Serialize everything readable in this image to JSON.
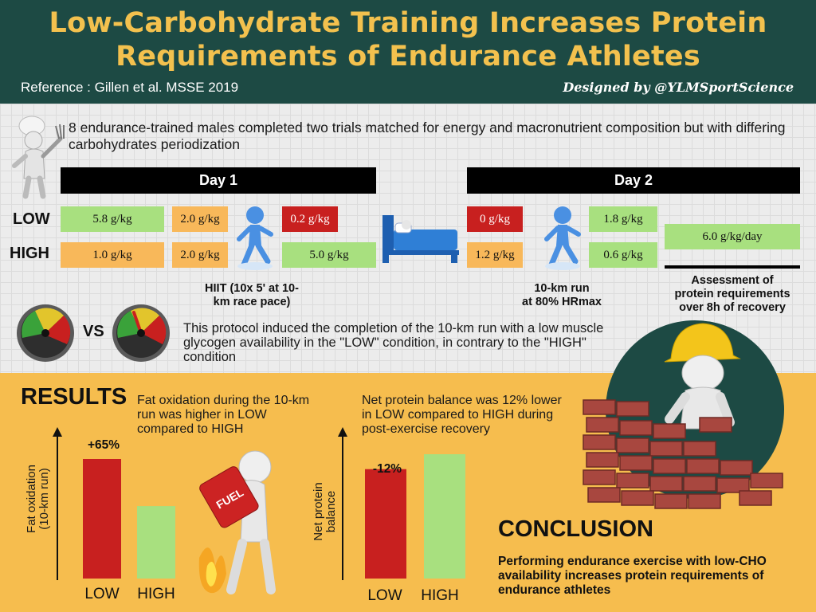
{
  "header": {
    "title_line1": "Low-Carbohydrate Training Increases Protein",
    "title_line2": "Requirements of Endurance Athletes",
    "reference": "Reference : Gillen et al. MSSE 2019",
    "designed_by": "Designed by @YLMSportScience"
  },
  "intro": "8 endurance-trained males completed two trials matched for energy and macronutrient composition but with differing carbohydrates periodization",
  "day1": {
    "label": "Day 1",
    "low": [
      "5.8 g/kg",
      "2.0 g/kg",
      "0.2 g/kg"
    ],
    "high": [
      "1.0 g/kg",
      "2.0 g/kg",
      "5.0 g/kg"
    ],
    "caption_line1": "HIIT (10x 5' at 10-",
    "caption_line2": "km race pace)"
  },
  "day2": {
    "label": "Day 2",
    "low": [
      "0 g/kg",
      "1.8 g/kg"
    ],
    "high": [
      "1.2 g/kg",
      "0.6 g/kg"
    ],
    "protein": "6.0 g/kg/day",
    "run_caption_line1": "10-km run",
    "run_caption_line2": "at 80% HRmax",
    "assessment_line1": "Assessment of",
    "assessment_line2": "protein requirements",
    "assessment_line3": "over 8h of recovery"
  },
  "rows": {
    "low": "LOW",
    "high": "HIGH"
  },
  "vs": "VS",
  "protocol": "This protocol induced the completion of the 10-km run with a low muscle glycogen availability in the \"LOW\" condition, in contrary to the \"HIGH\" condition",
  "results": {
    "title": "RESULTS",
    "fat_text": "Fat oxidation during the 10-km run was higher in LOW compared to HIGH",
    "fat_axis_line1": "Fat oxidation",
    "fat_axis_line2": "(10-km run)",
    "fat_change": "+65%",
    "protein_text": "Net protein balance was 12% lower in LOW compared to HIGH during post-exercise recovery",
    "protein_axis_line1": "Net protein",
    "protein_axis_line2": "balance",
    "protein_change": "-12%",
    "cat_low": "LOW",
    "cat_high": "HIGH",
    "fuel_label": "FUEL"
  },
  "chart_data": [
    {
      "type": "bar",
      "categories": [
        "LOW",
        "HIGH"
      ],
      "values": [
        165,
        100
      ],
      "title": "",
      "ylabel": "Fat oxidation (10-km run)",
      "annotations": [
        "+65%"
      ],
      "colors": [
        "#c8201f",
        "#a8e07f"
      ]
    },
    {
      "type": "bar",
      "categories": [
        "LOW",
        "HIGH"
      ],
      "values": [
        88,
        100
      ],
      "title": "",
      "ylabel": "Net protein balance",
      "annotations": [
        "-12%"
      ],
      "colors": [
        "#c8201f",
        "#a8e07f"
      ]
    }
  ],
  "conclusion": {
    "title": "CONCLUSION",
    "text": "Performing endurance exercise with low-CHO availability increases protein requirements of endurance athletes"
  },
  "colors": {
    "header_bg": "#1d4a44",
    "title": "#f3c14e",
    "accent_orange": "#f6bd4e",
    "green": "#a8e07f",
    "orange": "#f8b85a",
    "red": "#c8201f"
  },
  "icons": [
    "chef-figure-icon",
    "running-figure-icon",
    "bed-icon",
    "glycogen-gauge-icon",
    "fuel-can-figure-icon",
    "builder-figure-icon",
    "brick-wall-icon"
  ]
}
